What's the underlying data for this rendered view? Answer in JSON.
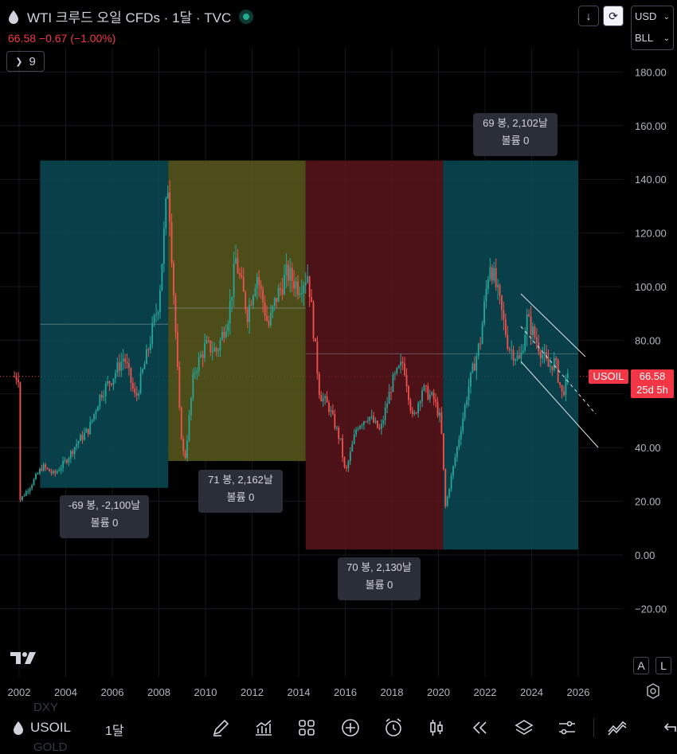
{
  "header": {
    "title": "WTI 크루드 오일 CFDs · 1달 · TVC",
    "price_line": "66.58  −0.67 (−1.00%)",
    "indicator_count": "9",
    "currency": "USD",
    "unit": "BLL"
  },
  "price_axis": [
    "180.00",
    "160.00",
    "140.00",
    "120.00",
    "100.00",
    "80.00",
    "60.00",
    "40.00",
    "20.00",
    "0.00",
    "−20.00"
  ],
  "time_axis": [
    "2002",
    "2004",
    "2006",
    "2008",
    "2010",
    "2012",
    "2014",
    "2016",
    "2018",
    "2020",
    "2022",
    "2024",
    "2026"
  ],
  "notes": [
    {
      "line1": "-69 봉, -2,100날",
      "line2": "볼륨 0"
    },
    {
      "line1": "71 봉, 2,162날",
      "line2": "볼륨 0"
    },
    {
      "line1": "70 봉, 2,130날",
      "line2": "볼륨 0"
    },
    {
      "line1": "69 봉, 2,102날",
      "line2": "볼륨 0"
    }
  ],
  "price_tag": {
    "symbol": "USOIL",
    "price": "66.58",
    "countdown": "25d 5h"
  },
  "scale_buttons": {
    "a": "A",
    "l": "L"
  },
  "bottom_bar": {
    "symbol": "USOIL",
    "timeframe": "1달",
    "ghost_above": "DXY",
    "ghost_below": "GOLD",
    "icons": [
      "pencil-icon",
      "indicators-icon",
      "layout-grid-icon",
      "plus-circle-icon",
      "alarm-icon",
      "candles-icon",
      "rewind-icon",
      "layers-icon",
      "settings-sliders-icon",
      "trend-icon",
      "undo-icon"
    ]
  },
  "colors": {
    "up": "#26a69a",
    "down": "#ef5350",
    "range_teal": "#0b4a55",
    "range_olive": "#5b5a1e",
    "range_red": "#5a151b",
    "price_tag": "#f23645"
  },
  "chart_data": {
    "type": "candlestick",
    "interval": "monthly",
    "ylim": [
      -20,
      185
    ],
    "x_range": [
      2001.8,
      2026.4
    ],
    "last_price": 66.58,
    "series": [
      {
        "x": 2002.0,
        "y": 20
      },
      {
        "x": 2002.5,
        "y": 26
      },
      {
        "x": 2003.0,
        "y": 33
      },
      {
        "x": 2003.5,
        "y": 30
      },
      {
        "x": 2004.0,
        "y": 35
      },
      {
        "x": 2004.5,
        "y": 42
      },
      {
        "x": 2005.0,
        "y": 47
      },
      {
        "x": 2005.5,
        "y": 60
      },
      {
        "x": 2006.0,
        "y": 66
      },
      {
        "x": 2006.5,
        "y": 74
      },
      {
        "x": 2007.0,
        "y": 58
      },
      {
        "x": 2007.5,
        "y": 75
      },
      {
        "x": 2008.0,
        "y": 95
      },
      {
        "x": 2008.4,
        "y": 140
      },
      {
        "x": 2008.9,
        "y": 50
      },
      {
        "x": 2009.1,
        "y": 34
      },
      {
        "x": 2009.5,
        "y": 68
      },
      {
        "x": 2010.0,
        "y": 78
      },
      {
        "x": 2010.5,
        "y": 76
      },
      {
        "x": 2011.0,
        "y": 90
      },
      {
        "x": 2011.3,
        "y": 110
      },
      {
        "x": 2011.8,
        "y": 90
      },
      {
        "x": 2012.2,
        "y": 105
      },
      {
        "x": 2012.7,
        "y": 85
      },
      {
        "x": 2013.0,
        "y": 95
      },
      {
        "x": 2013.5,
        "y": 105
      },
      {
        "x": 2014.0,
        "y": 100
      },
      {
        "x": 2014.4,
        "y": 105
      },
      {
        "x": 2014.9,
        "y": 60
      },
      {
        "x": 2015.3,
        "y": 55
      },
      {
        "x": 2015.8,
        "y": 42
      },
      {
        "x": 2016.0,
        "y": 30
      },
      {
        "x": 2016.5,
        "y": 48
      },
      {
        "x": 2017.0,
        "y": 52
      },
      {
        "x": 2017.5,
        "y": 46
      },
      {
        "x": 2018.0,
        "y": 64
      },
      {
        "x": 2018.5,
        "y": 72
      },
      {
        "x": 2018.9,
        "y": 50
      },
      {
        "x": 2019.3,
        "y": 62
      },
      {
        "x": 2019.8,
        "y": 58
      },
      {
        "x": 2020.1,
        "y": 50
      },
      {
        "x": 2020.3,
        "y": 18
      },
      {
        "x": 2020.8,
        "y": 40
      },
      {
        "x": 2021.3,
        "y": 63
      },
      {
        "x": 2021.8,
        "y": 80
      },
      {
        "x": 2022.2,
        "y": 110
      },
      {
        "x": 2022.6,
        "y": 95
      },
      {
        "x": 2023.0,
        "y": 78
      },
      {
        "x": 2023.5,
        "y": 72
      },
      {
        "x": 2023.8,
        "y": 88
      },
      {
        "x": 2024.2,
        "y": 80
      },
      {
        "x": 2024.7,
        "y": 70
      },
      {
        "x": 2025.0,
        "y": 72
      },
      {
        "x": 2025.3,
        "y": 60
      },
      {
        "x": 2025.6,
        "y": 66.58
      }
    ],
    "ranges": [
      {
        "from": 2002.9,
        "to": 2008.4,
        "low": 25,
        "high": 147
      },
      {
        "from": 2008.4,
        "to": 2014.3,
        "low": 35,
        "high": 147
      },
      {
        "from": 2014.3,
        "to": 2020.2,
        "low": 2,
        "high": 147
      },
      {
        "from": 2020.2,
        "to": 2026.0,
        "low": 2,
        "high": 147
      }
    ]
  }
}
